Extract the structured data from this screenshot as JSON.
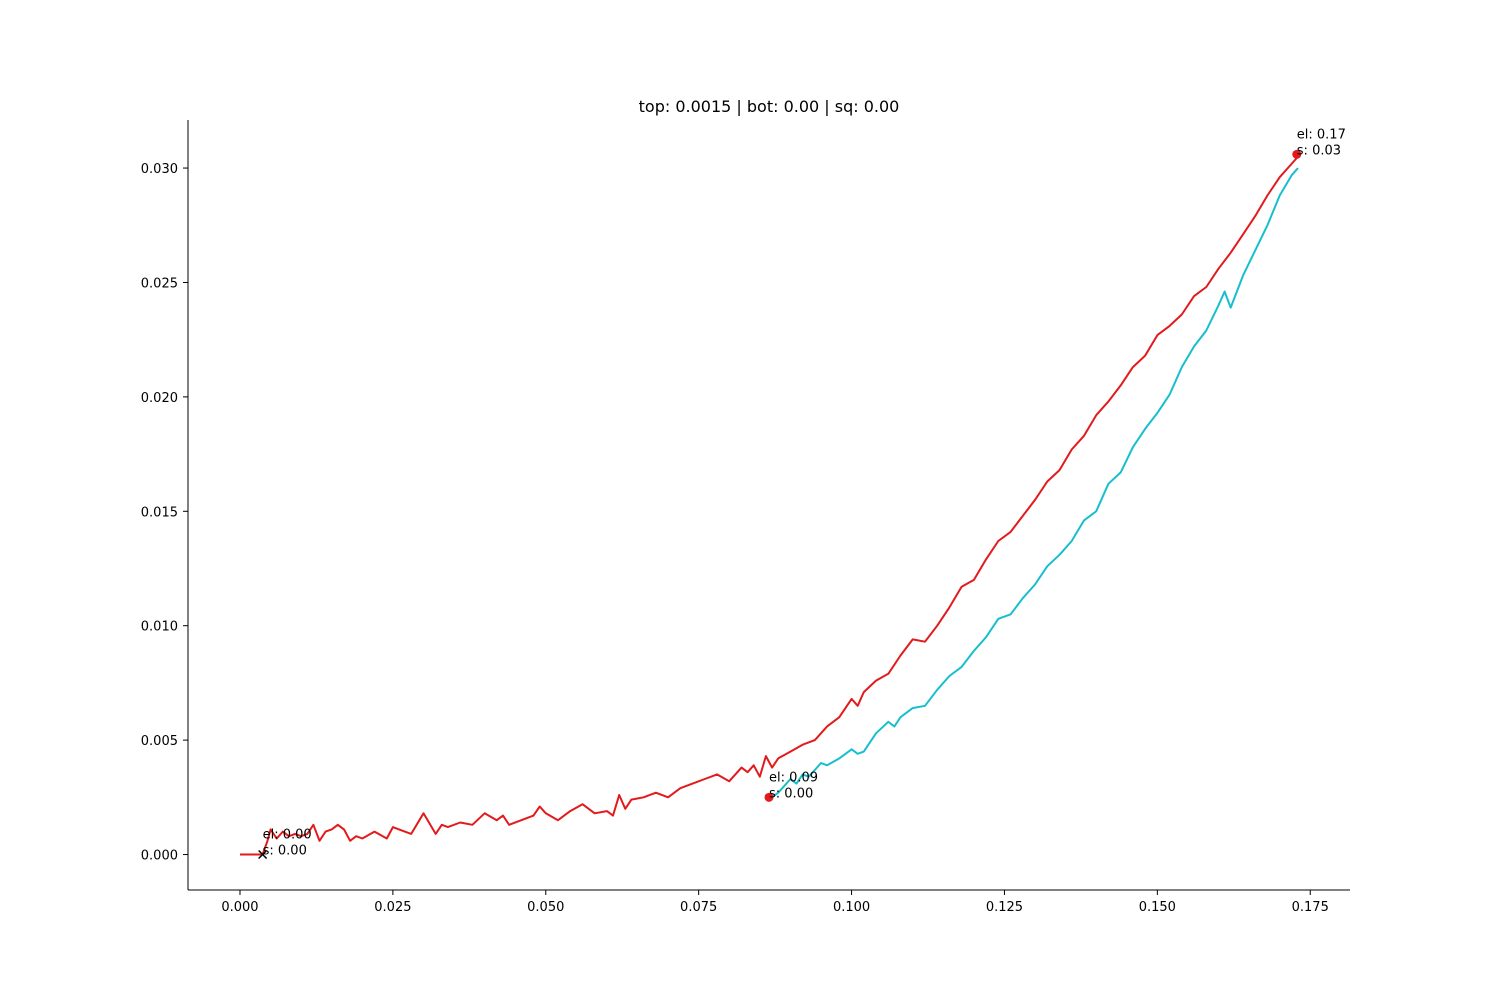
{
  "chart_data": {
    "type": "line",
    "title": "top: 0.0015 | bot: 0.00 | sq: 0.00",
    "xlabel": "",
    "ylabel": "",
    "xlim": [
      -0.0085,
      0.1815
    ],
    "ylim": [
      -0.00155,
      0.0321
    ],
    "x_ticks": [
      0.0,
      0.025,
      0.05,
      0.075,
      0.1,
      0.125,
      0.15,
      0.175
    ],
    "x_tick_labels": [
      "0.000",
      "0.025",
      "0.050",
      "0.075",
      "0.100",
      "0.125",
      "0.150",
      "0.175"
    ],
    "y_ticks": [
      0.0,
      0.005,
      0.01,
      0.015,
      0.02,
      0.025,
      0.03
    ],
    "y_tick_labels": [
      "0.000",
      "0.005",
      "0.010",
      "0.015",
      "0.020",
      "0.025",
      "0.030"
    ],
    "grid": false,
    "legend": "none",
    "series": [
      {
        "color": "#e31a1c",
        "x": [
          0.0,
          0.0037,
          0.0045,
          0.005,
          0.006,
          0.007,
          0.008,
          0.009,
          0.01,
          0.011,
          0.012,
          0.013,
          0.014,
          0.015,
          0.016,
          0.017,
          0.018,
          0.019,
          0.02,
          0.022,
          0.024,
          0.025,
          0.026,
          0.028,
          0.03,
          0.032,
          0.033,
          0.034,
          0.036,
          0.038,
          0.04,
          0.042,
          0.043,
          0.044,
          0.046,
          0.048,
          0.049,
          0.05,
          0.052,
          0.054,
          0.056,
          0.058,
          0.06,
          0.061,
          0.062,
          0.063,
          0.064,
          0.066,
          0.068,
          0.07,
          0.072,
          0.074,
          0.076,
          0.078,
          0.08,
          0.082,
          0.083,
          0.084,
          0.085,
          0.086,
          0.087,
          0.088,
          0.09,
          0.092,
          0.094,
          0.096,
          0.098,
          0.1,
          0.101,
          0.102,
          0.104,
          0.106,
          0.108,
          0.11,
          0.112,
          0.114,
          0.116,
          0.118,
          0.12,
          0.122,
          0.124,
          0.126,
          0.128,
          0.13,
          0.132,
          0.134,
          0.136,
          0.138,
          0.14,
          0.141,
          0.142,
          0.144,
          0.146,
          0.148,
          0.15,
          0.152,
          0.154,
          0.156,
          0.158,
          0.16,
          0.162,
          0.164,
          0.166,
          0.168,
          0.17,
          0.172,
          0.173
        ],
        "y": [
          0.0,
          0.0,
          0.0006,
          0.0011,
          0.0007,
          0.001,
          0.0008,
          0.0009,
          0.0008,
          0.0009,
          0.0013,
          0.0006,
          0.001,
          0.0011,
          0.0013,
          0.0011,
          0.0006,
          0.0008,
          0.0007,
          0.001,
          0.0007,
          0.0012,
          0.0011,
          0.0009,
          0.0018,
          0.0009,
          0.0013,
          0.0012,
          0.0014,
          0.0013,
          0.0018,
          0.0015,
          0.0017,
          0.0013,
          0.0015,
          0.0017,
          0.0021,
          0.0018,
          0.0015,
          0.0019,
          0.0022,
          0.0018,
          0.0019,
          0.0017,
          0.0026,
          0.002,
          0.0024,
          0.0025,
          0.0027,
          0.0025,
          0.0029,
          0.0031,
          0.0033,
          0.0035,
          0.0032,
          0.0038,
          0.0036,
          0.0039,
          0.0034,
          0.0043,
          0.0038,
          0.0042,
          0.0045,
          0.0048,
          0.005,
          0.0056,
          0.006,
          0.0068,
          0.0065,
          0.0071,
          0.0076,
          0.0079,
          0.0087,
          0.0094,
          0.0093,
          0.01,
          0.0108,
          0.0117,
          0.012,
          0.0129,
          0.0137,
          0.0141,
          0.0148,
          0.0155,
          0.0163,
          0.0168,
          0.0177,
          0.0183,
          0.0192,
          0.0195,
          0.0198,
          0.0205,
          0.0213,
          0.0218,
          0.0227,
          0.0231,
          0.0236,
          0.0244,
          0.0248,
          0.0256,
          0.0263,
          0.0271,
          0.0279,
          0.0288,
          0.0296,
          0.0302,
          0.0305
        ]
      },
      {
        "color": "#17becf",
        "x": [
          0.087,
          0.088,
          0.089,
          0.09,
          0.091,
          0.092,
          0.093,
          0.094,
          0.095,
          0.096,
          0.098,
          0.1,
          0.101,
          0.102,
          0.104,
          0.106,
          0.107,
          0.108,
          0.11,
          0.112,
          0.114,
          0.116,
          0.118,
          0.12,
          0.122,
          0.124,
          0.126,
          0.128,
          0.13,
          0.132,
          0.134,
          0.136,
          0.138,
          0.14,
          0.142,
          0.144,
          0.146,
          0.148,
          0.15,
          0.152,
          0.154,
          0.156,
          0.158,
          0.16,
          0.161,
          0.162,
          0.164,
          0.166,
          0.168,
          0.17,
          0.172,
          0.173
        ],
        "y": [
          0.0025,
          0.0027,
          0.003,
          0.0033,
          0.0031,
          0.0035,
          0.0034,
          0.0037,
          0.004,
          0.0039,
          0.0042,
          0.0046,
          0.0044,
          0.0045,
          0.0053,
          0.0058,
          0.0056,
          0.006,
          0.0064,
          0.0065,
          0.0072,
          0.0078,
          0.0082,
          0.0089,
          0.0095,
          0.0103,
          0.0105,
          0.0112,
          0.0118,
          0.0126,
          0.0131,
          0.0137,
          0.0146,
          0.015,
          0.0162,
          0.0167,
          0.0178,
          0.0186,
          0.0193,
          0.0201,
          0.0213,
          0.0222,
          0.0229,
          0.024,
          0.0246,
          0.0239,
          0.0253,
          0.0264,
          0.0275,
          0.0288,
          0.0297,
          0.03
        ]
      }
    ],
    "markers": [
      {
        "type": "x",
        "x": 0.0037,
        "y": 0.0,
        "color": "#000000"
      },
      {
        "type": "point",
        "x": 0.0865,
        "y": 0.0025,
        "color": "#e31a1c"
      },
      {
        "type": "point",
        "x": 0.1728,
        "y": 0.0306,
        "color": "#e31a1c"
      }
    ],
    "annotations": [
      {
        "x": 0.0037,
        "y": 0.0,
        "lines": [
          "el: 0.00",
          "s: 0.00"
        ]
      },
      {
        "x": 0.0865,
        "y": 0.0025,
        "lines": [
          "el: 0.09",
          "s: 0.00"
        ]
      },
      {
        "x": 0.1728,
        "y": 0.0306,
        "lines": [
          "el: 0.17",
          "s: 0.03"
        ]
      }
    ]
  }
}
